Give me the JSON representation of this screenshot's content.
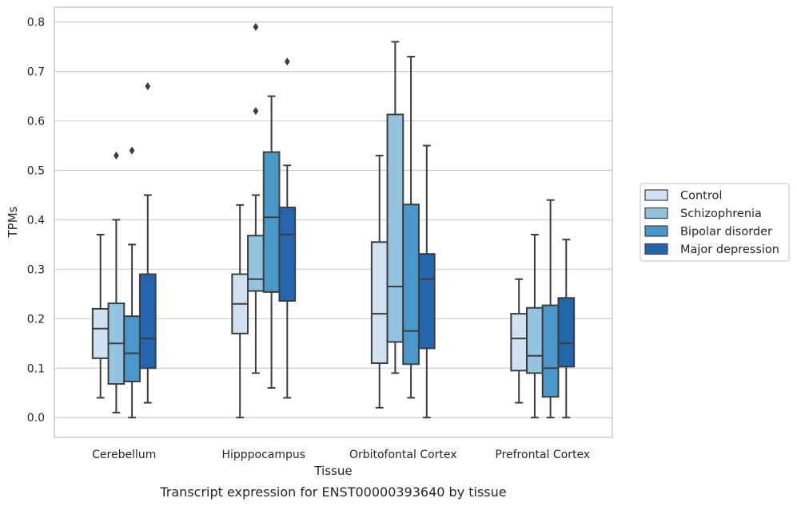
{
  "chart_data": {
    "type": "box",
    "title": "",
    "caption": "Transcript expression for ENST00000393640 by tissue",
    "xlabel": "Tissue",
    "ylabel": "TPMs",
    "ylim": [
      -0.04,
      0.83
    ],
    "yticks": [
      "0.0",
      "0.1",
      "0.2",
      "0.3",
      "0.4",
      "0.5",
      "0.6",
      "0.7",
      "0.8"
    ],
    "grid": true,
    "legend_position": "right",
    "categories": [
      "Cerebellum",
      "Hipppocampus",
      "Orbitofontal Cortex",
      "Prefrontal Cortex"
    ],
    "series": [
      {
        "name": "Control",
        "color": "#d0e1f2",
        "boxes": [
          {
            "whislo": 0.04,
            "q1": 0.12,
            "med": 0.18,
            "q3": 0.22,
            "whishi": 0.37,
            "fliers": []
          },
          {
            "whislo": 0.0,
            "q1": 0.17,
            "med": 0.23,
            "q3": 0.29,
            "whishi": 0.43,
            "fliers": []
          },
          {
            "whislo": 0.02,
            "q1": 0.11,
            "med": 0.21,
            "q3": 0.355,
            "whishi": 0.53,
            "fliers": []
          },
          {
            "whislo": 0.03,
            "q1": 0.095,
            "med": 0.16,
            "q3": 0.21,
            "whishi": 0.28,
            "fliers": []
          }
        ]
      },
      {
        "name": "Schizophrenia",
        "color": "#94c4df",
        "boxes": [
          {
            "whislo": 0.01,
            "q1": 0.068,
            "med": 0.15,
            "q3": 0.231,
            "whishi": 0.4,
            "fliers": [
              0.53
            ]
          },
          {
            "whislo": 0.09,
            "q1": 0.256,
            "med": 0.28,
            "q3": 0.368,
            "whishi": 0.45,
            "fliers": [
              0.62,
              0.79
            ]
          },
          {
            "whislo": 0.09,
            "q1": 0.153,
            "med": 0.265,
            "q3": 0.613,
            "whishi": 0.76,
            "fliers": []
          },
          {
            "whislo": 0.0,
            "q1": 0.09,
            "med": 0.125,
            "q3": 0.222,
            "whishi": 0.37,
            "fliers": []
          }
        ]
      },
      {
        "name": "Bipolar disorder",
        "color": "#4a98c9",
        "boxes": [
          {
            "whislo": 0.0,
            "q1": 0.073,
            "med": 0.13,
            "q3": 0.205,
            "whishi": 0.35,
            "fliers": [
              0.54
            ]
          },
          {
            "whislo": 0.06,
            "q1": 0.254,
            "med": 0.405,
            "q3": 0.537,
            "whishi": 0.65,
            "fliers": []
          },
          {
            "whislo": 0.04,
            "q1": 0.108,
            "med": 0.175,
            "q3": 0.431,
            "whishi": 0.73,
            "fliers": []
          },
          {
            "whislo": 0.0,
            "q1": 0.042,
            "med": 0.1,
            "q3": 0.227,
            "whishi": 0.44,
            "fliers": []
          }
        ]
      },
      {
        "name": "Major depression",
        "color": "#2366ae",
        "boxes": [
          {
            "whislo": 0.03,
            "q1": 0.1,
            "med": 0.16,
            "q3": 0.29,
            "whishi": 0.45,
            "fliers": [
              0.67
            ]
          },
          {
            "whislo": 0.04,
            "q1": 0.236,
            "med": 0.37,
            "q3": 0.425,
            "whishi": 0.51,
            "fliers": [
              0.72
            ]
          },
          {
            "whislo": 0.0,
            "q1": 0.14,
            "med": 0.28,
            "q3": 0.331,
            "whishi": 0.55,
            "fliers": []
          },
          {
            "whislo": 0.0,
            "q1": 0.103,
            "med": 0.15,
            "q3": 0.242,
            "whishi": 0.36,
            "fliers": []
          }
        ]
      }
    ]
  }
}
